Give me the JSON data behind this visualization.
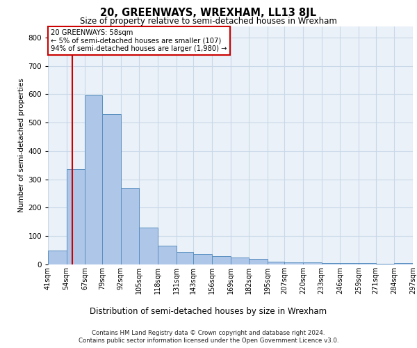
{
  "title": "20, GREENWAYS, WREXHAM, LL13 8JL",
  "subtitle": "Size of property relative to semi-detached houses in Wrexham",
  "xlabel": "Distribution of semi-detached houses by size in Wrexham",
  "ylabel": "Number of semi-detached properties",
  "footer_line1": "Contains HM Land Registry data © Crown copyright and database right 2024.",
  "footer_line2": "Contains public sector information licensed under the Open Government Licence v3.0.",
  "annotation_title": "20 GREENWAYS: 58sqm",
  "annotation_line1": "← 5% of semi-detached houses are smaller (107)",
  "annotation_line2": "94% of semi-detached houses are larger (1,980) →",
  "bin_edges": [
    41,
    54,
    67,
    79,
    92,
    105,
    118,
    131,
    143,
    156,
    169,
    182,
    195,
    207,
    220,
    233,
    246,
    259,
    271,
    284,
    297
  ],
  "bin_labels": [
    "41sqm",
    "54sqm",
    "67sqm",
    "79sqm",
    "92sqm",
    "105sqm",
    "118sqm",
    "131sqm",
    "143sqm",
    "156sqm",
    "169sqm",
    "182sqm",
    "195sqm",
    "207sqm",
    "220sqm",
    "233sqm",
    "246sqm",
    "259sqm",
    "271sqm",
    "284sqm",
    "297sqm"
  ],
  "counts": [
    50,
    335,
    595,
    530,
    270,
    130,
    65,
    45,
    38,
    30,
    25,
    20,
    10,
    8,
    8,
    5,
    5,
    4,
    3,
    4
  ],
  "bar_color": "#aec6e8",
  "bar_edge_color": "#5a8fc0",
  "vline_color": "#cc0000",
  "vline_x": 58,
  "ylim": [
    0,
    840
  ],
  "yticks": [
    0,
    100,
    200,
    300,
    400,
    500,
    600,
    700,
    800
  ],
  "grid_color": "#c8d8e8",
  "bg_color": "#eaf1f8"
}
